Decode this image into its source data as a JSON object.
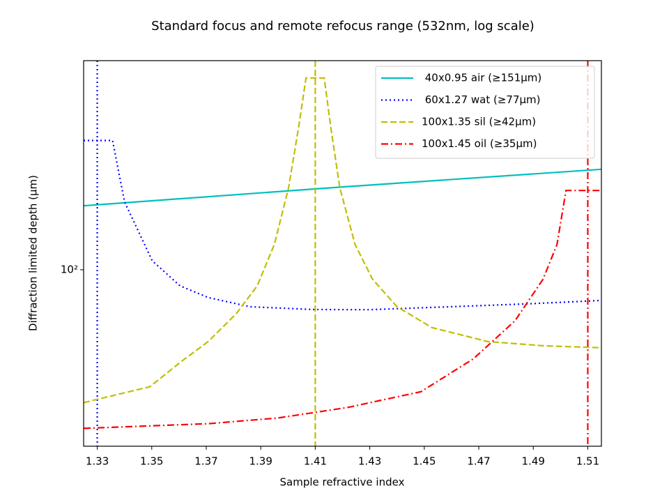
{
  "chart_data": {
    "type": "line",
    "title": "Standard focus and remote refocus range (532nm, log scale)",
    "x_label": "Sample refractive index",
    "y_label": "Diffraction limited depth (μm)",
    "xlim": [
      1.325,
      1.515
    ],
    "xticks": [
      1.33,
      1.35,
      1.37,
      1.39,
      1.41,
      1.43,
      1.45,
      1.47,
      1.49,
      1.51
    ],
    "ylim": [
      31.5,
      393
    ],
    "yticks": [
      {
        "value": 100,
        "label": "10²"
      }
    ],
    "yscale": "log",
    "legend": "upper right",
    "series": [
      {
        "name": " 40x0.95 air (≥151μm)",
        "color": "#00bfbf",
        "linestyle": "solid",
        "x": [
          1.325,
          1.42,
          1.515
        ],
        "values": [
          152,
          172,
          193
        ]
      },
      {
        "name": " 60x1.27 wat (≥77μm)",
        "color": "#0000ff",
        "linestyle": "dotted",
        "vline": 1.33,
        "x": [
          1.325,
          1.3356,
          1.34,
          1.3502,
          1.3604,
          1.3707,
          1.386,
          1.409,
          1.4295,
          1.46,
          1.488,
          1.515
        ],
        "values": [
          233,
          233,
          156,
          106,
          90,
          83.4,
          78.5,
          77.1,
          77,
          78.5,
          80,
          81.8
        ]
      },
      {
        "name": "100x1.35 sil (≥42μm)",
        "color": "#bfbf00",
        "linestyle": "dashed",
        "vline": 1.41,
        "x": [
          1.325,
          1.3493,
          1.3604,
          1.3707,
          1.381,
          1.3887,
          1.395,
          1.4002,
          1.404,
          1.4066,
          1.4133,
          1.4156,
          1.419,
          1.4246,
          1.431,
          1.44,
          1.4528,
          1.4733,
          1.4937,
          1.515
        ],
        "values": [
          41.9,
          46.5,
          54.5,
          62.5,
          75,
          90,
          118,
          171,
          257,
          351,
          351,
          257,
          171,
          118,
          94,
          78.5,
          68.5,
          62.5,
          60.8,
          60
        ]
      },
      {
        "name": "100x1.45 oil (≥35μm)",
        "color": "#ff0000",
        "linestyle": "dashdot",
        "vline": 1.51,
        "x": [
          1.325,
          1.3707,
          1.3963,
          1.4219,
          1.4488,
          1.468,
          1.4833,
          1.4936,
          1.4987,
          1.502,
          1.515
        ],
        "values": [
          35.4,
          36.5,
          37.9,
          40.6,
          45,
          55.8,
          71.6,
          94,
          118,
          168,
          168
        ]
      }
    ]
  }
}
